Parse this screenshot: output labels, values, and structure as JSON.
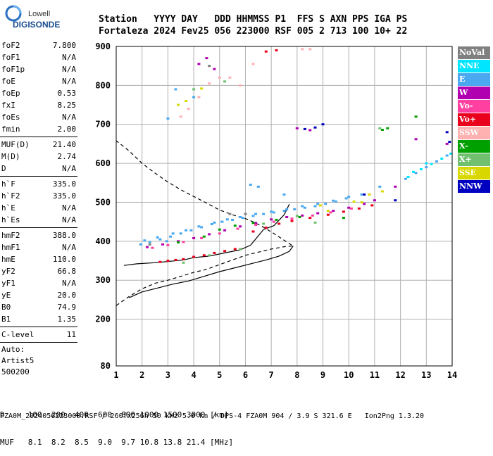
{
  "logo": {
    "line1": "Lowell",
    "line2": "DIGISONDE"
  },
  "header": {
    "labels": "Station   YYYY DAY   DDD HHMMSS P1  FFS S AXN PPS IGA PS",
    "values": "Fortaleza 2024 Fev25 056 223000 RSF 005 2 713 100 10+ 22"
  },
  "params": [
    {
      "label": "foF2",
      "value": "7.800"
    },
    {
      "label": "foF1",
      "value": "N/A"
    },
    {
      "label": "foF1p",
      "value": "N/A"
    },
    {
      "label": "foE",
      "value": "N/A"
    },
    {
      "label": "foEp",
      "value": "0.53"
    },
    {
      "label": "fxI",
      "value": "8.25"
    },
    {
      "label": "foEs",
      "value": "N/A"
    },
    {
      "label": "fmin",
      "value": "2.00"
    },
    {
      "label": "MUF(D)",
      "value": "21.40"
    },
    {
      "label": "M(D)",
      "value": "2.74"
    },
    {
      "label": "D",
      "value": "N/A"
    },
    {
      "label": "h`F",
      "value": "335.0"
    },
    {
      "label": "h`F2",
      "value": "335.0"
    },
    {
      "label": "h`E",
      "value": "N/A"
    },
    {
      "label": "h`Es",
      "value": "N/A"
    },
    {
      "label": "hmF2",
      "value": "388.0"
    },
    {
      "label": "hmF1",
      "value": "N/A"
    },
    {
      "label": "hmE",
      "value": "110.0"
    },
    {
      "label": "yF2",
      "value": "66.8"
    },
    {
      "label": "yF1",
      "value": "N/A"
    },
    {
      "label": "yE",
      "value": "20.0"
    },
    {
      "label": "B0",
      "value": "74.9"
    },
    {
      "label": "B1",
      "value": "1.35"
    },
    {
      "label": "C-level",
      "value": "11"
    }
  ],
  "auto_block": {
    "line1": "Auto:",
    "line2": "Artist5",
    "line3": "500200"
  },
  "legend": [
    {
      "label": "NoVal",
      "color": "#808080"
    },
    {
      "label": "NNE",
      "color": "#00e5ff"
    },
    {
      "label": "E",
      "color": "#4aa8f0"
    },
    {
      "label": "W",
      "color": "#b000b0"
    },
    {
      "label": "Vo-",
      "color": "#ff40a0"
    },
    {
      "label": "Vo+",
      "color": "#e8001c"
    },
    {
      "label": "SSW",
      "color": "#ffb0b0"
    },
    {
      "label": "X-",
      "color": "#00a000"
    },
    {
      "label": "X+",
      "color": "#70c070"
    },
    {
      "label": "SSE",
      "color": "#d8d800"
    },
    {
      "label": "NNW",
      "color": "#0000c0"
    }
  ],
  "table": {
    "line1": "D     100  200  400  600  800 1000 1500 3000 [km]",
    "line2": "MUF   8.1  8.2  8.5  9.0  9.7 10.8 13.8 21.4 [MHz]"
  },
  "footer": "FZA0M_2024056223000.RSF / 260fx256h 50 kHz 5.0 km / DPS-4 FZA0M 904 / 3.9 S 321.6 E   Ion2Png 1.3.20",
  "chart_data": {
    "type": "scatter",
    "x_ticks": [
      1,
      2,
      3,
      4,
      5,
      6,
      7,
      8,
      9,
      10,
      11,
      12,
      13,
      14
    ],
    "y_ticks": [
      80,
      200,
      300,
      400,
      500,
      600,
      700,
      800,
      900
    ],
    "xlim": [
      1,
      14
    ],
    "ylim": [
      80,
      900
    ],
    "grid": true,
    "series": [
      {
        "color": "#4aa8f0",
        "points": [
          [
            1.95,
            392
          ],
          [
            2.3,
            398
          ],
          [
            2.7,
            405
          ],
          [
            3.1,
            412
          ],
          [
            3.5,
            420
          ],
          [
            3.9,
            428
          ],
          [
            4.3,
            436
          ],
          [
            4.7,
            444
          ],
          [
            5.1,
            450
          ],
          [
            5.5,
            455
          ],
          [
            5.9,
            460
          ],
          [
            6.3,
            465
          ],
          [
            6.7,
            470
          ],
          [
            7.1,
            474
          ],
          [
            7.5,
            478
          ],
          [
            7.9,
            482
          ],
          [
            8.3,
            486
          ],
          [
            8.7,
            490
          ],
          [
            9.1,
            496
          ],
          [
            9.5,
            502
          ],
          [
            9.9,
            510
          ],
          [
            2.1,
            402
          ],
          [
            2.6,
            410
          ],
          [
            3.2,
            420
          ],
          [
            3.7,
            428
          ],
          [
            4.2,
            438
          ],
          [
            4.8,
            448
          ],
          [
            5.3,
            456
          ],
          [
            5.8,
            462
          ],
          [
            6.4,
            470
          ],
          [
            7.0,
            476
          ],
          [
            7.6,
            482
          ],
          [
            8.2,
            490
          ],
          [
            8.8,
            496
          ],
          [
            9.4,
            504
          ],
          [
            10.0,
            514
          ],
          [
            3.0,
            715
          ],
          [
            3.3,
            790
          ],
          [
            2.95,
            400
          ],
          [
            6.2,
            545
          ],
          [
            6.5,
            540
          ],
          [
            11.2,
            540
          ],
          [
            12.2,
            560
          ],
          [
            12.6,
            575
          ],
          [
            13.0,
            590
          ],
          [
            13.4,
            605
          ],
          [
            13.8,
            620
          ],
          [
            10.5,
            520
          ],
          [
            4.0,
            770
          ],
          [
            7.5,
            520
          ]
        ]
      },
      {
        "color": "#00e5ff",
        "points": [
          [
            12.3,
            565
          ],
          [
            12.8,
            585
          ],
          [
            13.2,
            598
          ],
          [
            13.6,
            612
          ],
          [
            13.95,
            625
          ],
          [
            12.5,
            578
          ],
          [
            13.0,
            600
          ]
        ]
      },
      {
        "color": "#b000b0",
        "points": [
          [
            2.2,
            385
          ],
          [
            2.8,
            392
          ],
          [
            3.4,
            400
          ],
          [
            4.0,
            408
          ],
          [
            4.6,
            418
          ],
          [
            5.2,
            428
          ],
          [
            5.8,
            438
          ],
          [
            6.4,
            447
          ],
          [
            7.0,
            456
          ],
          [
            7.6,
            462
          ],
          [
            8.2,
            466
          ],
          [
            8.8,
            472
          ],
          [
            9.4,
            478
          ],
          [
            10.0,
            486
          ],
          [
            10.6,
            496
          ],
          [
            11.0,
            505
          ],
          [
            4.2,
            855
          ],
          [
            4.5,
            870
          ],
          [
            12.6,
            662
          ],
          [
            8.0,
            690
          ],
          [
            8.5,
            685
          ],
          [
            13.8,
            650
          ],
          [
            4.8,
            842
          ],
          [
            11.8,
            540
          ]
        ]
      },
      {
        "color": "#ff40a0",
        "points": [
          [
            2.4,
            383
          ],
          [
            3.0,
            390
          ],
          [
            3.6,
            398
          ],
          [
            4.3,
            408
          ],
          [
            5.0,
            420
          ],
          [
            5.7,
            432
          ],
          [
            6.4,
            442
          ],
          [
            7.1,
            450
          ],
          [
            7.8,
            458
          ],
          [
            8.6,
            466
          ],
          [
            9.3,
            474
          ],
          [
            10.1,
            484
          ]
        ]
      },
      {
        "color": "#e8001c",
        "points": [
          [
            2.7,
            347
          ],
          [
            3.0,
            350
          ],
          [
            3.3,
            352
          ],
          [
            3.6,
            354
          ],
          [
            4.0,
            360
          ],
          [
            4.4,
            364
          ],
          [
            4.8,
            370
          ],
          [
            5.2,
            375
          ],
          [
            5.6,
            380
          ],
          [
            6.3,
            425
          ],
          [
            6.8,
            435
          ],
          [
            7.3,
            445
          ],
          [
            7.8,
            452
          ],
          [
            8.5,
            460
          ],
          [
            9.2,
            468
          ],
          [
            9.8,
            476
          ],
          [
            10.4,
            484
          ],
          [
            10.9,
            492
          ],
          [
            6.8,
            887
          ],
          [
            7.2,
            890
          ]
        ]
      },
      {
        "color": "#ffb0b0",
        "points": [
          [
            3.5,
            720
          ],
          [
            3.8,
            740
          ],
          [
            4.2,
            770
          ],
          [
            4.6,
            805
          ],
          [
            5.0,
            820
          ],
          [
            5.4,
            820
          ],
          [
            8.2,
            893
          ],
          [
            8.5,
            893
          ],
          [
            6.3,
            855
          ],
          [
            5.8,
            800
          ]
        ]
      },
      {
        "color": "#00a000",
        "points": [
          [
            3.4,
            397
          ],
          [
            4.4,
            412
          ],
          [
            5.0,
            430
          ],
          [
            5.6,
            440
          ],
          [
            6.3,
            447
          ],
          [
            7.2,
            455
          ],
          [
            8.1,
            462
          ],
          [
            11.3,
            686
          ],
          [
            11.5,
            690
          ],
          [
            12.6,
            720
          ],
          [
            9.8,
            460
          ]
        ]
      },
      {
        "color": "#70c070",
        "points": [
          [
            3.6,
            345
          ],
          [
            4.6,
            364
          ],
          [
            5.8,
            380
          ],
          [
            6.7,
            445
          ],
          [
            8.0,
            465
          ],
          [
            8.7,
            448
          ],
          [
            11.2,
            690
          ],
          [
            4.0,
            790
          ],
          [
            5.2,
            810
          ]
        ]
      },
      {
        "color": "#d8d800",
        "points": [
          [
            3.4,
            750
          ],
          [
            3.7,
            760
          ],
          [
            4.3,
            792
          ],
          [
            10.5,
            500
          ],
          [
            10.8,
            520
          ],
          [
            11.3,
            528
          ],
          [
            9.2,
            478
          ],
          [
            10.2,
            502
          ],
          [
            8.9,
            492
          ]
        ]
      },
      {
        "color": "#0000c0",
        "points": [
          [
            8.3,
            688
          ],
          [
            8.7,
            692
          ],
          [
            9.0,
            700
          ],
          [
            11.8,
            505
          ],
          [
            13.8,
            680
          ],
          [
            13.9,
            655
          ],
          [
            10.6,
            520
          ]
        ]
      },
      {
        "color": "#808080",
        "points": [
          [
            4.6,
            850
          ],
          [
            5.4,
            470
          ],
          [
            6.0,
            470
          ],
          [
            2.3,
            392
          ]
        ]
      }
    ],
    "lines": [
      {
        "style": "solid",
        "points": [
          [
            1.3,
            338
          ],
          [
            1.8,
            342
          ],
          [
            2.5,
            345
          ],
          [
            3.0,
            348
          ],
          [
            3.6,
            352
          ],
          [
            4.0,
            358
          ],
          [
            4.6,
            362
          ],
          [
            5.2,
            370
          ],
          [
            5.8,
            378
          ],
          [
            6.2,
            390
          ],
          [
            6.7,
            430
          ],
          [
            7.1,
            440
          ],
          [
            7.5,
            468
          ],
          [
            7.7,
            495
          ]
        ]
      },
      {
        "style": "solid",
        "points": [
          [
            1.5,
            255
          ],
          [
            2.0,
            270
          ],
          [
            2.6,
            280
          ],
          [
            3.2,
            290
          ],
          [
            3.8,
            298
          ],
          [
            4.4,
            310
          ],
          [
            5.0,
            322
          ],
          [
            5.6,
            332
          ],
          [
            6.2,
            342
          ],
          [
            6.8,
            352
          ],
          [
            7.3,
            362
          ],
          [
            7.7,
            374
          ],
          [
            7.85,
            388
          ]
        ]
      },
      {
        "style": "dashed",
        "points": [
          [
            1.0,
            235
          ],
          [
            1.5,
            258
          ],
          [
            2.0,
            278
          ],
          [
            2.5,
            292
          ],
          [
            3.0,
            300
          ],
          [
            3.5,
            310
          ],
          [
            4.0,
            320
          ],
          [
            4.5,
            328
          ],
          [
            5.0,
            340
          ],
          [
            5.5,
            352
          ],
          [
            6.0,
            364
          ],
          [
            6.5,
            372
          ],
          [
            7.0,
            380
          ],
          [
            7.5,
            386
          ],
          [
            7.85,
            388
          ],
          [
            7.6,
            398
          ],
          [
            7.1,
            420
          ],
          [
            6.6,
            440
          ],
          [
            6.1,
            456
          ],
          [
            5.5,
            468
          ],
          [
            5.0,
            480
          ],
          [
            4.5,
            498
          ],
          [
            4.0,
            515
          ],
          [
            3.5,
            532
          ],
          [
            3.0,
            552
          ],
          [
            2.5,
            575
          ],
          [
            2.0,
            600
          ],
          [
            1.5,
            632
          ],
          [
            1.0,
            658
          ]
        ]
      }
    ]
  }
}
